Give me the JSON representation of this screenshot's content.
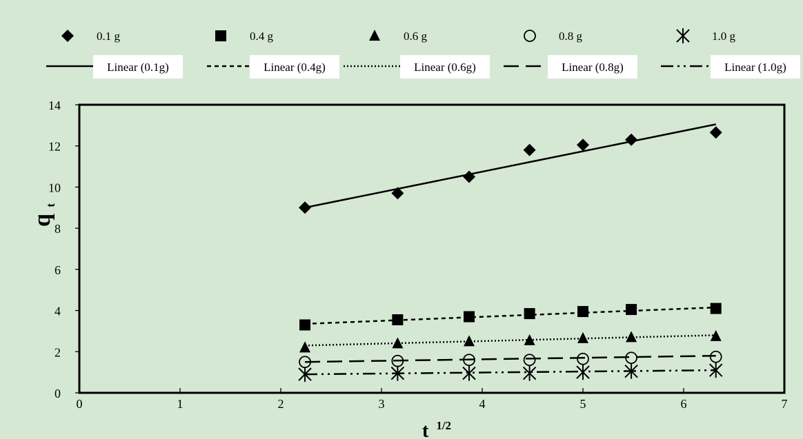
{
  "chart_data": {
    "type": "scatter",
    "xlabel": "t",
    "xlabel_sup": "1/2",
    "ylabel": "q",
    "ylabel_sub": "t",
    "xlim": [
      0,
      7
    ],
    "ylim": [
      0,
      14
    ],
    "xticks": [
      "0",
      "1",
      "2",
      "3",
      "4",
      "5",
      "6",
      "7"
    ],
    "yticks": [
      "0",
      "2",
      "4",
      "6",
      "8",
      "10",
      "12",
      "14"
    ],
    "grid": false,
    "legend_position": "top",
    "x": [
      2.24,
      3.16,
      3.87,
      4.47,
      5.0,
      5.48,
      6.32
    ],
    "series": [
      {
        "name": "0.1 g",
        "marker": "diamond",
        "values": [
          9.0,
          9.7,
          10.5,
          11.8,
          12.05,
          12.3,
          12.65
        ],
        "fit": {
          "name": "Linear (0.1g)",
          "dash": "solid",
          "y_start": 9.0,
          "y_end": 13.05
        }
      },
      {
        "name": "0.4 g",
        "marker": "square",
        "values": [
          3.3,
          3.55,
          3.7,
          3.85,
          3.95,
          4.05,
          4.1
        ],
        "fit": {
          "name": "Linear (0.4g)",
          "dash": "6,5",
          "y_start": 3.35,
          "y_end": 4.15
        }
      },
      {
        "name": "0.6 g",
        "marker": "triangle",
        "values": [
          2.2,
          2.4,
          2.5,
          2.55,
          2.65,
          2.7,
          2.75
        ],
        "fit": {
          "name": "Linear (0.6g)",
          "dash": "2,3",
          "y_start": 2.3,
          "y_end": 2.8
        }
      },
      {
        "name": "0.8 g",
        "marker": "circle",
        "values": [
          1.5,
          1.55,
          1.6,
          1.6,
          1.65,
          1.7,
          1.75
        ],
        "fit": {
          "name": "Linear (0.8g)",
          "dash": "22,10",
          "y_start": 1.5,
          "y_end": 1.8
        }
      },
      {
        "name": "1.0 g",
        "marker": "asterisk",
        "values": [
          0.9,
          0.95,
          0.95,
          0.95,
          1.0,
          1.05,
          1.1
        ],
        "fit": {
          "name": "Linear (1.0g)",
          "dash": "18,6,3,6,3,6",
          "y_start": 0.9,
          "y_end": 1.1
        }
      }
    ]
  }
}
